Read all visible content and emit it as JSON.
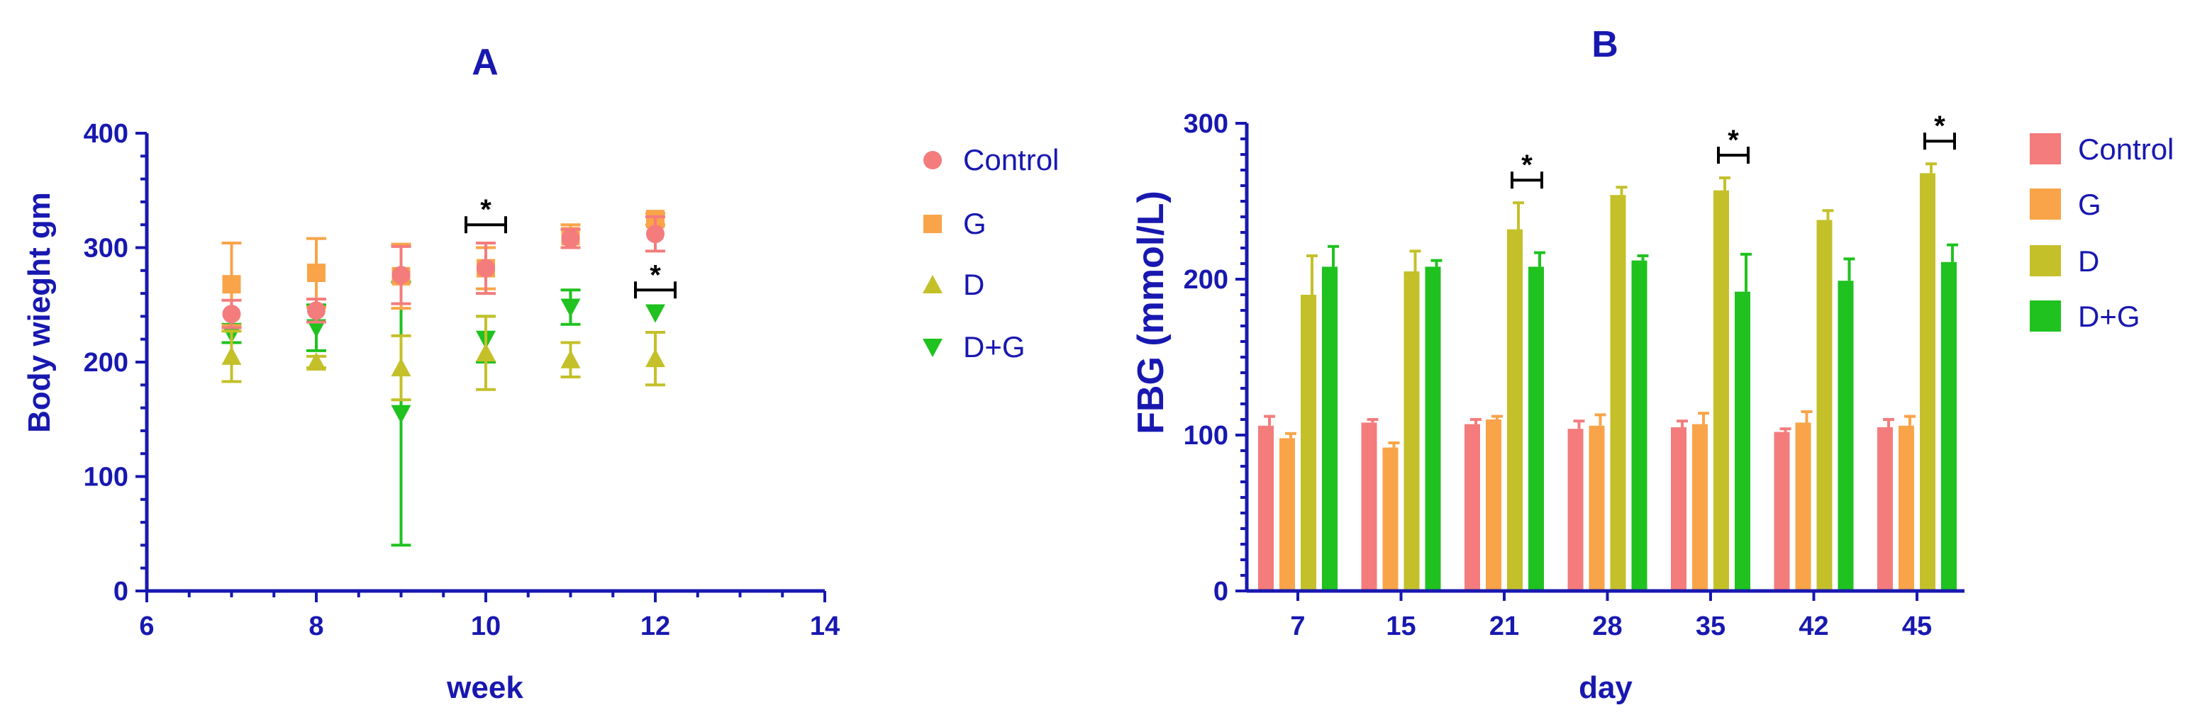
{
  "chart_data": [
    {
      "panel": "A",
      "type": "scatter",
      "title": "A",
      "xlabel": "week",
      "ylabel": "Body wieght gm",
      "xlim": [
        6,
        14
      ],
      "ylim": [
        0,
        400
      ],
      "x_ticks": [
        "6",
        "8",
        "10",
        "12",
        "14"
      ],
      "y_ticks": [
        "0",
        "100",
        "200",
        "300",
        "400"
      ],
      "series": [
        {
          "name": "Control",
          "marker": "circle",
          "color": "#f47c7c",
          "points": [
            {
              "x": 7,
              "y": 242,
              "err": 12
            },
            {
              "x": 8,
              "y": 245,
              "err": 10
            },
            {
              "x": 9,
              "y": 276,
              "err": 25
            },
            {
              "x": 10,
              "y": 282,
              "err": 22
            },
            {
              "x": 11,
              "y": 308,
              "err": 8
            },
            {
              "x": 12,
              "y": 312,
              "err": 15
            }
          ]
        },
        {
          "name": "G",
          "marker": "square",
          "color": "#f9a449",
          "points": [
            {
              "x": 7,
              "y": 268,
              "err": 36
            },
            {
              "x": 8,
              "y": 278,
              "err": 30
            },
            {
              "x": 9,
              "y": 275,
              "err": 28
            },
            {
              "x": 10,
              "y": 282,
              "err": 18
            },
            {
              "x": 11,
              "y": 310,
              "err": 10
            },
            {
              "x": 12,
              "y": 325,
              "err": 5
            }
          ]
        },
        {
          "name": "D",
          "marker": "triangle-up",
          "color": "#c4c02a",
          "points": [
            {
              "x": 7,
              "y": 205,
              "err": 22
            },
            {
              "x": 8,
              "y": 200,
              "err": 5
            },
            {
              "x": 9,
              "y": 195,
              "err": 28
            },
            {
              "x": 10,
              "y": 208,
              "err": 32
            },
            {
              "x": 11,
              "y": 202,
              "err": 15
            },
            {
              "x": 12,
              "y": 203,
              "err": 23
            }
          ]
        },
        {
          "name": "D+G",
          "marker": "triangle-down",
          "color": "#1fc21f",
          "points": [
            {
              "x": 7,
              "y": 225,
              "err": 8
            },
            {
              "x": 8,
              "y": 230,
              "err": 20
            },
            {
              "x": 9,
              "y": 155,
              "err": 115
            },
            {
              "x": 10,
              "y": 220,
              "err": 20
            },
            {
              "x": 11,
              "y": 248,
              "err": 15
            },
            {
              "x": 12,
              "y": 243,
              "err": 0
            }
          ]
        }
      ],
      "annotations": [
        {
          "x": 10,
          "y": 320,
          "text": "*"
        },
        {
          "x": 12,
          "y": 263,
          "text": "*"
        }
      ]
    },
    {
      "panel": "B",
      "type": "bar",
      "title": "B",
      "xlabel": "day",
      "ylabel": "FBG (mmol/L)",
      "ylim": [
        0,
        300
      ],
      "y_ticks": [
        "0",
        "100",
        "200",
        "300"
      ],
      "categories": [
        "7",
        "15",
        "21",
        "28",
        "35",
        "42",
        "45"
      ],
      "series": [
        {
          "name": "Control",
          "color": "#f47c7c",
          "values": [
            106,
            108,
            107,
            104,
            105,
            102,
            105
          ],
          "errors": [
            6,
            2,
            3,
            5,
            4,
            2,
            5
          ]
        },
        {
          "name": "G",
          "color": "#f9a449",
          "values": [
            98,
            92,
            110,
            106,
            107,
            108,
            106
          ],
          "errors": [
            3,
            3,
            2,
            7,
            7,
            7,
            6
          ]
        },
        {
          "name": "D",
          "color": "#c4c02a",
          "values": [
            190,
            205,
            232,
            254,
            257,
            238,
            268
          ],
          "errors": [
            25,
            13,
            17,
            5,
            8,
            6,
            6
          ]
        },
        {
          "name": "D+G",
          "color": "#1fc21f",
          "values": [
            208,
            208,
            208,
            212,
            192,
            199,
            211
          ],
          "errors": [
            13,
            4,
            9,
            3,
            24,
            14,
            11
          ]
        }
      ],
      "annotations": [
        {
          "category": "21",
          "text": "*"
        },
        {
          "category": "35",
          "text": "*"
        },
        {
          "category": "45",
          "text": "*"
        }
      ]
    }
  ]
}
